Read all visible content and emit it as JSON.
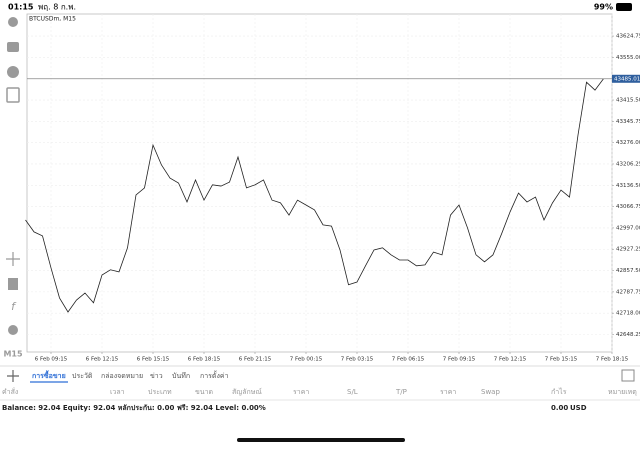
{
  "status_bar": {
    "time": "01:15",
    "date": "พฤ. 8 ก.พ.",
    "battery": "99%"
  },
  "toolbar": {
    "timeframe": "M15"
  },
  "chart_data": {
    "type": "line",
    "title": "BTCUSDm, M15",
    "color": "#222222",
    "categories": [
      null,
      null,
      null,
      "6 Feb 09:15",
      null,
      null,
      null,
      null,
      null,
      "6 Feb 12:15",
      null,
      null,
      null,
      null,
      null,
      "6 Feb 15:15",
      null,
      null,
      null,
      null,
      null,
      "6 Feb 18:15",
      null,
      null,
      null,
      null,
      null,
      "6 Feb 21:15",
      null,
      null,
      null,
      null,
      null,
      "7 Feb 00:15",
      null,
      null,
      null,
      null,
      null,
      "7 Feb 03:15",
      null,
      null,
      null,
      null,
      null,
      "7 Feb 06:15",
      null,
      null,
      null,
      null,
      null,
      "7 Feb 09:15",
      null,
      null,
      null,
      null,
      null,
      "7 Feb 12:15",
      null,
      null,
      null,
      null,
      null,
      "7 Feb 15:15",
      null,
      null,
      null,
      null,
      null,
      "7 Feb 18:15"
    ],
    "values": [
      43023,
      42984,
      42971,
      42866,
      42768,
      42722,
      42761,
      42784,
      42752,
      42843,
      42860,
      42853,
      42932,
      43105,
      43128,
      43268,
      43203,
      43160,
      43144,
      43082,
      43154,
      43088,
      43138,
      43134,
      43147,
      43229,
      43128,
      43138,
      43154,
      43088,
      43079,
      43039,
      43088,
      43072,
      43056,
      43007,
      43003,
      42925,
      42811,
      42820,
      42873,
      42925,
      42932,
      42909,
      42892,
      42892,
      42873,
      42876,
      42918,
      42909,
      43039,
      43072,
      42997,
      42909,
      42886,
      42909,
      42977,
      43049,
      43111,
      43082,
      43098,
      43023,
      43079,
      43121,
      43098,
      43301,
      43474,
      43448,
      43485.01,
      null
    ],
    "current_price": 43485.01,
    "ylim": [
      42591,
      43697
    ],
    "yticks": [
      43624.75,
      {
        "value": 43555,
        "label": "43555.00"
      },
      {
        "value": 43415.5,
        "label": "43415.50"
      },
      43345.75,
      {
        "value": 43276,
        "label": "43276.00"
      },
      43206.25,
      {
        "value": 43136.5,
        "label": "43136.50"
      },
      43066.75,
      {
        "value": 42997,
        "label": "42997.00"
      },
      42927.25,
      {
        "value": 42857.5,
        "label": "42857.50"
      },
      42787.75,
      {
        "value": 42718,
        "label": "42718.00"
      },
      42648.25
    ],
    "grid": true
  },
  "tabs": [
    "การซื้อขาย",
    "ประวัติ",
    "กล่องจดหมาย",
    "ข่าว",
    "บันทึก",
    "การตั้งค่า"
  ],
  "table": {
    "headers": [
      "คำสั่ง",
      "เวลา",
      "ประเภท",
      "ขนาด",
      "สัญลักษณ์",
      "ราคา",
      "S/L",
      "T/P",
      "ราคา",
      "Swap",
      "กำไร",
      "หมายเหตุ"
    ]
  },
  "footer": {
    "account": "Balance: 92.04 Equity: 92.04 หลักประกัน: 0.00 ฟรี: 92.04 Level: 0.00%",
    "total": "0.00",
    "currency": "USD"
  }
}
